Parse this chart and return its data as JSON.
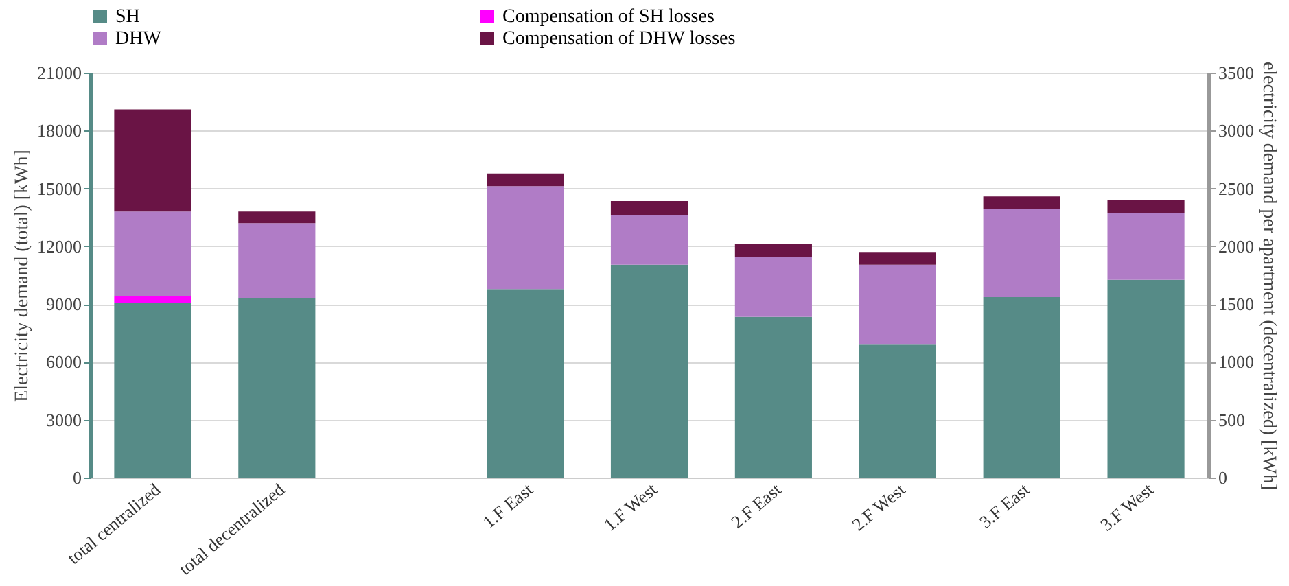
{
  "chart_data": {
    "type": "bar",
    "stacked": true,
    "categories": [
      "total centralized",
      "total decentralized",
      null,
      "1.F East",
      "1.F West",
      "2.F East",
      "2.F West",
      "3.F East",
      "3.F West"
    ],
    "ylabel": "Electricity demand (total) [kWh]",
    "y2label": "electricity demand per apartment (decentralized) [kWh]",
    "ylim": [
      0,
      21000
    ],
    "yticks": [
      0,
      3000,
      6000,
      9000,
      12000,
      15000,
      18000,
      21000
    ],
    "y2lim": [
      0,
      3500
    ],
    "y2ticks": [
      0,
      500,
      1000,
      1500,
      2000,
      2500,
      3000,
      3500
    ],
    "grid": "y",
    "legend": "top",
    "series": [
      {
        "name": "SH",
        "color": "#568b87",
        "values": [
          9050,
          9300,
          null,
          null,
          null,
          null,
          null,
          null,
          null
        ]
      },
      {
        "name": "Compensation of SH losses",
        "color": "#ff00ff",
        "values": [
          350,
          null,
          null,
          null,
          null,
          null,
          null,
          null,
          null
        ]
      },
      {
        "name": "DHW",
        "color": "#b07cc6",
        "values": [
          4400,
          3900,
          null,
          null,
          null,
          null,
          null,
          null,
          null
        ]
      },
      {
        "name": "Compensation of DHW losses",
        "color": "#6a1445",
        "values": [
          5300,
          600,
          null,
          null,
          null,
          null,
          null,
          null,
          null
        ]
      },
      {
        "axis": "y2",
        "color": "#568b87",
        "values": [
          null,
          null,
          null,
          1630,
          1840,
          1390,
          1150,
          1560,
          1710
        ]
      },
      {
        "axis": "y2",
        "color": "#b07cc6",
        "values": [
          null,
          null,
          null,
          890,
          430,
          520,
          690,
          760,
          580
        ]
      },
      {
        "axis": "y2",
        "color": "#6a1445",
        "values": [
          null,
          null,
          null,
          110,
          120,
          110,
          110,
          110,
          110
        ]
      }
    ]
  }
}
